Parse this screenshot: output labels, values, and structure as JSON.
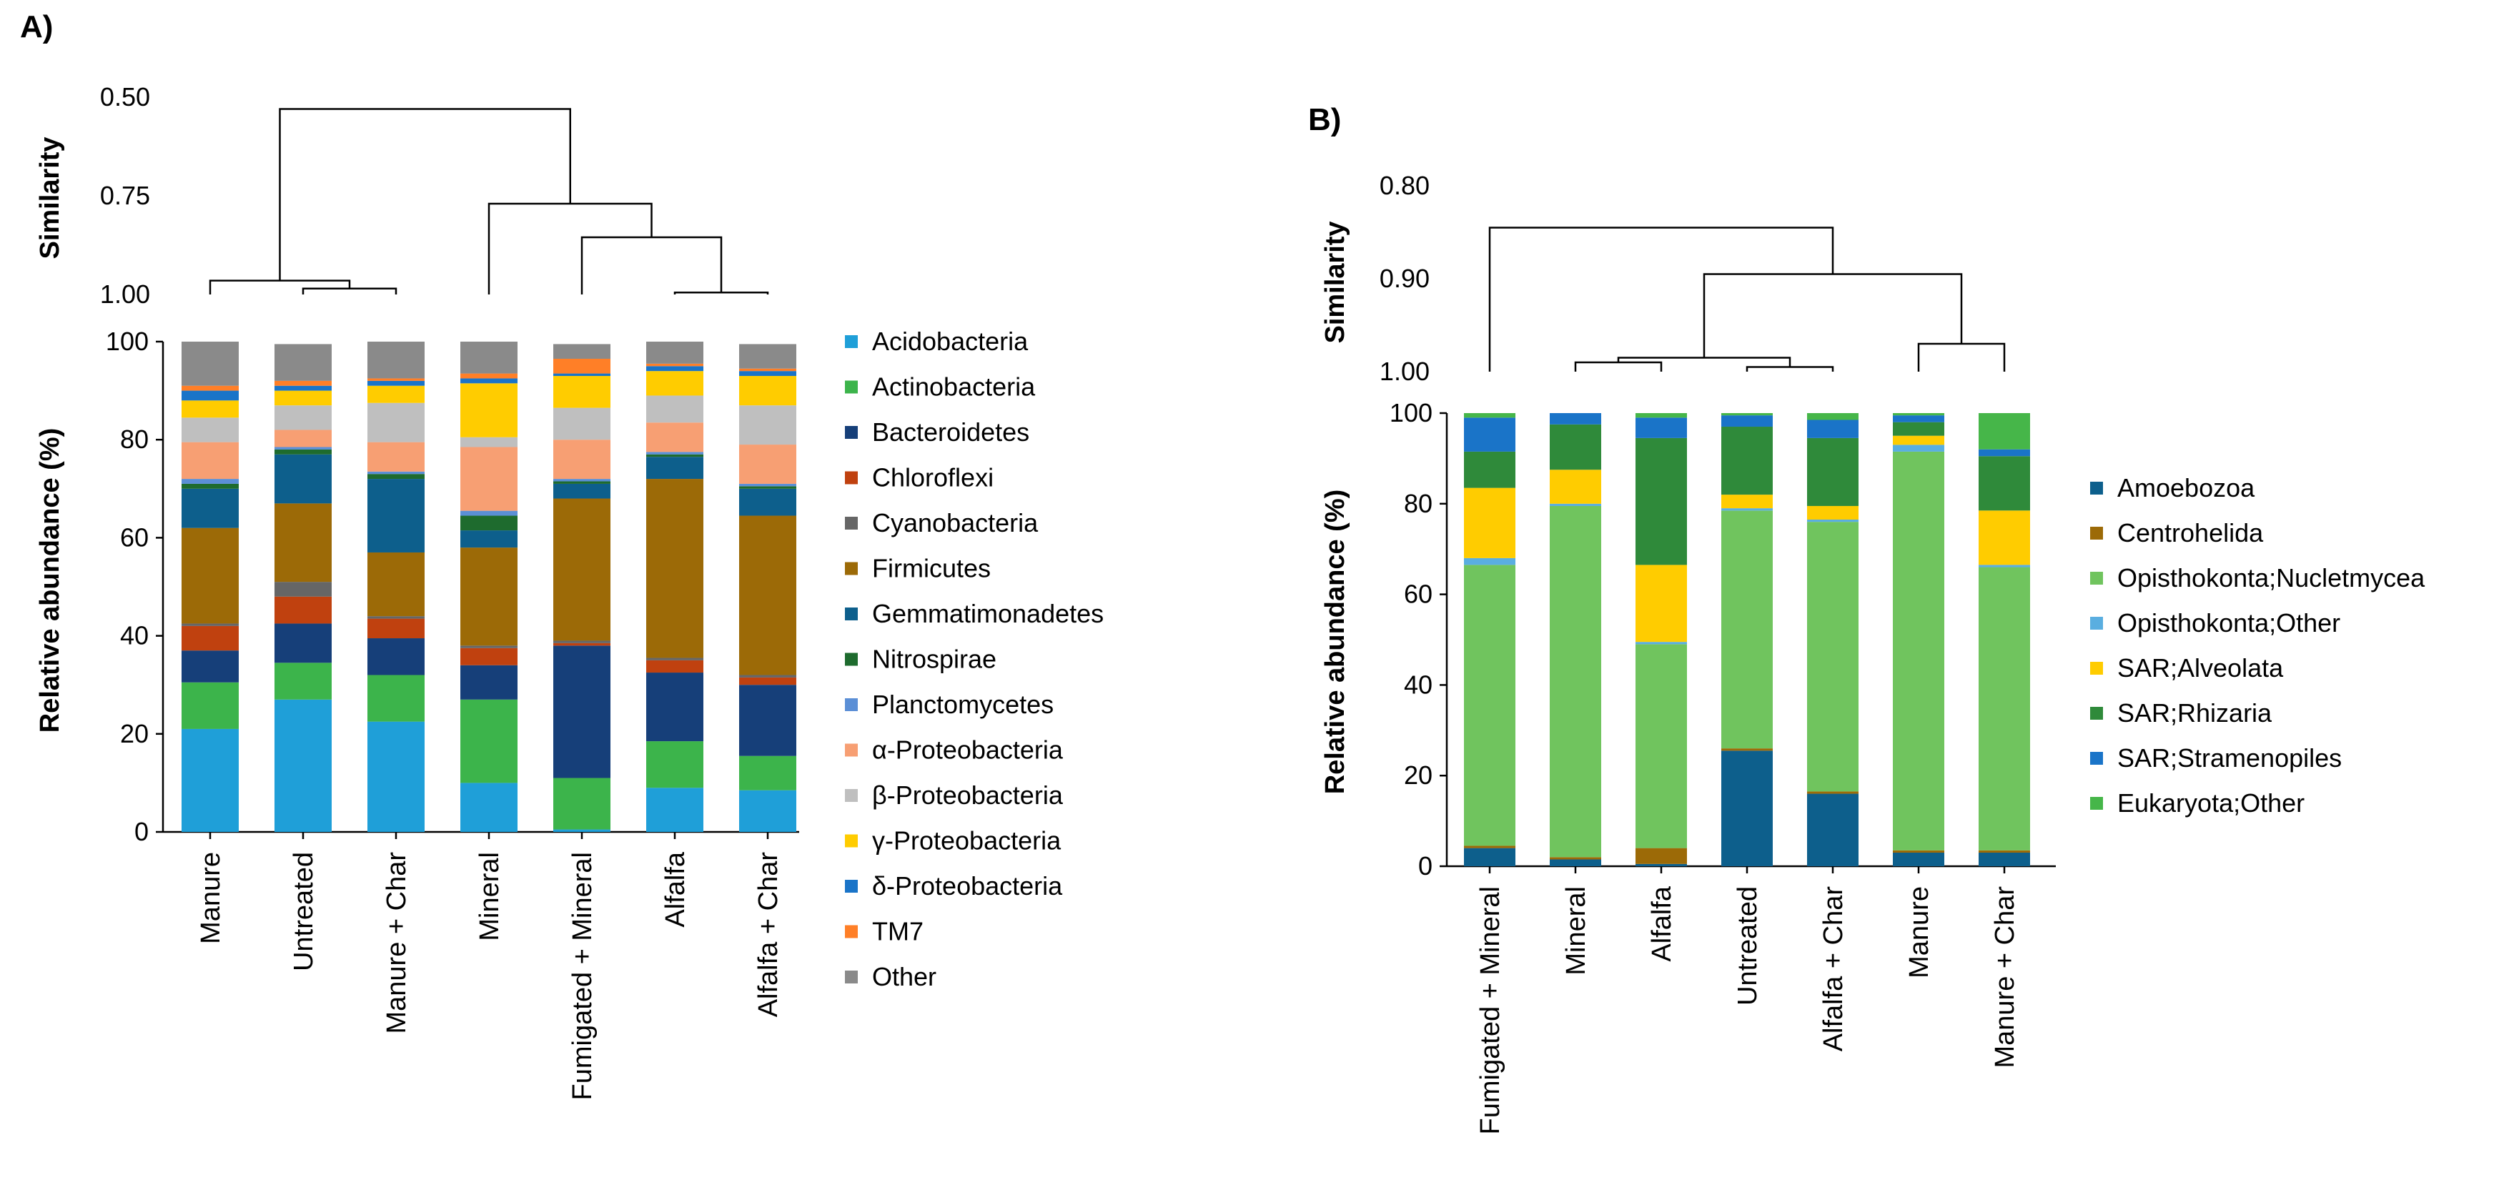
{
  "chart_data": [
    {
      "panel": "A)",
      "type": "bar",
      "stacked": true,
      "ylabel": "Relative abundance (%)",
      "ylim": [
        0,
        100
      ],
      "yticks": [
        0,
        20,
        40,
        60,
        80,
        100
      ],
      "categories": [
        "Manure",
        "Untreated",
        "Manure + Char",
        "Mineral",
        "Fumigated + Mineral",
        "Alfalfa",
        "Alfalfa + Char"
      ],
      "dendrogram": {
        "ylabel": "Similarity",
        "ticks": [
          "0.50",
          "0.75",
          "1.00"
        ],
        "range": [
          0.5,
          1.0
        ]
      },
      "series": [
        {
          "name": "Acidobacteria",
          "color": "#1f9fd8",
          "values": [
            21,
            27,
            22.5,
            10,
            0.5,
            9,
            8.5
          ]
        },
        {
          "name": "Actinobacteria",
          "color": "#3cb44b",
          "values": [
            9.5,
            7.5,
            9.5,
            17,
            10.5,
            9.5,
            7
          ]
        },
        {
          "name": "Bacteroidetes",
          "color": "#163f79",
          "values": [
            6.5,
            8,
            7.5,
            7,
            27,
            14,
            14.5
          ]
        },
        {
          "name": "Chloroflexi",
          "color": "#c0410f",
          "values": [
            5,
            5.5,
            4,
            3.5,
            0.5,
            2.5,
            1.5
          ]
        },
        {
          "name": "Cyanobacteria",
          "color": "#666666",
          "values": [
            0.5,
            3,
            0.5,
            0.5,
            0.5,
            0.5,
            0.5
          ]
        },
        {
          "name": "Firmicutes",
          "color": "#9c6a07",
          "values": [
            19.5,
            16,
            13,
            20,
            29,
            36.5,
            32.5
          ]
        },
        {
          "name": "Gemmatimonadetes",
          "color": "#0d5f8c",
          "values": [
            8,
            10,
            15,
            3.5,
            3,
            4.5,
            5.5
          ]
        },
        {
          "name": "Nitrospirae",
          "color": "#1e6b2e",
          "values": [
            1,
            1,
            1,
            3,
            0.5,
            0.5,
            0.5
          ]
        },
        {
          "name": "Planctomycetes",
          "color": "#5b8fd6",
          "values": [
            1,
            0.5,
            0.5,
            1,
            0.5,
            0.5,
            0.5
          ]
        },
        {
          "name": "α-Proteobacteria",
          "color": "#f79f73",
          "values": [
            7.5,
            3.5,
            6,
            13,
            8,
            6,
            8
          ]
        },
        {
          "name": "β-Proteobacteria",
          "color": "#bfbfbf",
          "values": [
            5,
            5,
            8,
            2,
            6.5,
            5.5,
            8
          ]
        },
        {
          "name": "γ-Proteobacteria",
          "color": "#ffcc00",
          "values": [
            3.5,
            3,
            3.5,
            11,
            6.5,
            5,
            6
          ]
        },
        {
          "name": "δ-Proteobacteria",
          "color": "#1a74c8",
          "values": [
            2,
            1,
            1,
            1,
            0.5,
            1,
            1
          ]
        },
        {
          "name": "TM7",
          "color": "#ff7f27",
          "values": [
            1,
            1,
            0.5,
            1,
            3,
            0.5,
            0.5
          ]
        },
        {
          "name": "Other",
          "color": "#8a8a8a",
          "values": [
            9,
            7.5,
            7.5,
            6.5,
            3,
            4.5,
            5
          ]
        }
      ]
    },
    {
      "panel": "B)",
      "type": "bar",
      "stacked": true,
      "ylabel": "Relative abundance (%)",
      "ylim": [
        0,
        100
      ],
      "yticks": [
        0,
        20,
        40,
        60,
        80,
        100
      ],
      "categories": [
        "Fumigated + Mineral",
        "Mineral",
        "Alfalfa",
        "Untreated",
        "Alfalfa + Char",
        "Manure",
        "Manure + Char"
      ],
      "dendrogram": {
        "ylabel": "Similarity",
        "ticks": [
          "0.80",
          "0.90",
          "1.00"
        ],
        "range": [
          0.8,
          1.0
        ]
      },
      "series": [
        {
          "name": "Amoebozoa",
          "color": "#0d5f8c",
          "values": [
            4,
            1.5,
            0.5,
            25.5,
            16,
            3,
            3
          ]
        },
        {
          "name": "Centrohelida",
          "color": "#9c6a07",
          "values": [
            0.5,
            0.5,
            3.5,
            0.5,
            0.5,
            0.5,
            0.5
          ]
        },
        {
          "name": "Opisthokonta;Nucletmycea",
          "color": "#70c45e",
          "values": [
            62,
            77.5,
            45,
            52.5,
            59.5,
            88,
            62.5
          ]
        },
        {
          "name": "Opisthokonta;Other",
          "color": "#5aaee0",
          "values": [
            1.5,
            0.5,
            0.5,
            0.5,
            0.5,
            1.5,
            0.5
          ]
        },
        {
          "name": "SAR;Alveolata",
          "color": "#ffcc00",
          "values": [
            15.5,
            7.5,
            17,
            3,
            3,
            2,
            12
          ]
        },
        {
          "name": "SAR;Rhizaria",
          "color": "#2f8a3a",
          "values": [
            8,
            10,
            28,
            15,
            15,
            3,
            12
          ]
        },
        {
          "name": "SAR;Stramenopiles",
          "color": "#1a74c8",
          "values": [
            7.5,
            2.5,
            4.5,
            2.5,
            4,
            1.5,
            1.5
          ]
        },
        {
          "name": "Eukaryota;Other",
          "color": "#46b649",
          "values": [
            1,
            0,
            1,
            0.5,
            1.5,
            0.5,
            8
          ]
        }
      ]
    }
  ]
}
